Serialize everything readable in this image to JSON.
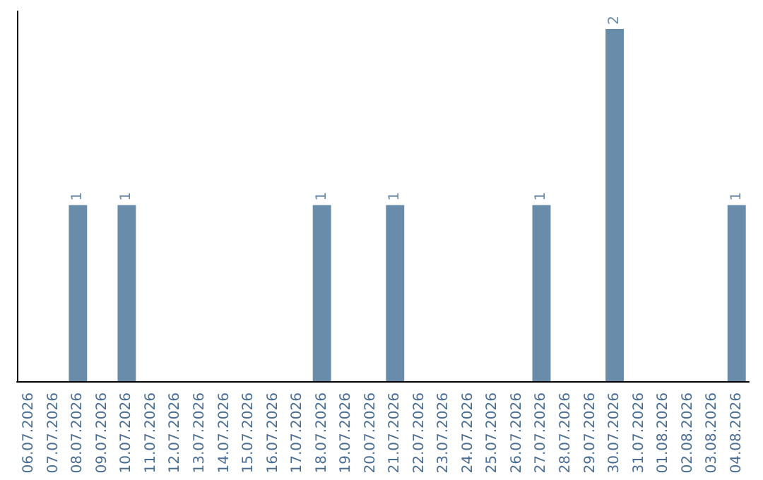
{
  "chart_data": {
    "type": "bar",
    "categories": [
      "06.07.2026",
      "07.07.2026",
      "08.07.2026",
      "09.07.2026",
      "10.07.2026",
      "11.07.2026",
      "12.07.2026",
      "13.07.2026",
      "14.07.2026",
      "15.07.2026",
      "16.07.2026",
      "17.07.2026",
      "18.07.2026",
      "19.07.2026",
      "20.07.2026",
      "21.07.2026",
      "22.07.2026",
      "23.07.2026",
      "24.07.2026",
      "25.07.2026",
      "26.07.2026",
      "27.07.2026",
      "28.07.2026",
      "29.07.2026",
      "30.07.2026",
      "31.07.2026",
      "01.08.2026",
      "02.08.2026",
      "03.08.2026",
      "04.08.2026"
    ],
    "values": [
      0,
      0,
      1,
      0,
      1,
      0,
      0,
      0,
      0,
      0,
      0,
      0,
      1,
      0,
      0,
      1,
      0,
      0,
      0,
      0,
      0,
      1,
      0,
      0,
      2,
      0,
      0,
      0,
      0,
      1
    ],
    "value_labels": [
      null,
      null,
      "1",
      null,
      "1",
      null,
      null,
      null,
      null,
      null,
      null,
      null,
      "1",
      null,
      null,
      "1",
      null,
      null,
      null,
      null,
      null,
      "1",
      null,
      null,
      "2",
      null,
      null,
      null,
      null,
      "1"
    ],
    "color": "#6a8cab",
    "grid": false,
    "tick_labels": "x"
  }
}
